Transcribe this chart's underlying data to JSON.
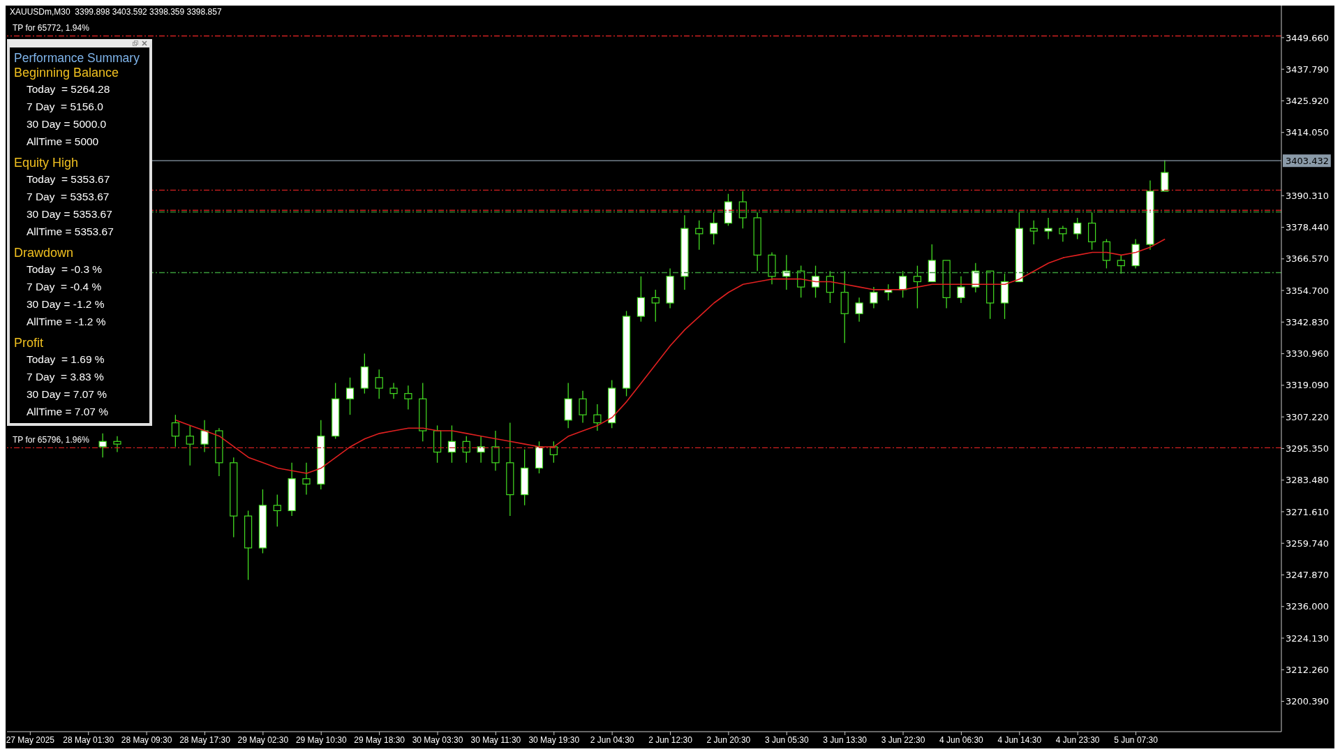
{
  "chart_data": [
    {
      "type": "candlestick",
      "title": "XAUUSDm,M30  3399.898 3403.592 3398.359 3398.857",
      "categories": [
        "27 May 2025",
        null,
        null,
        null,
        "28 May 01:30",
        null,
        null,
        null,
        "28 May 09:30",
        null,
        null,
        null,
        "28 May 17:30",
        null,
        null,
        null,
        "29 May 02:30",
        null,
        null,
        null,
        "29 May 10:30",
        null,
        null,
        null,
        "29 May 18:30",
        null,
        null,
        null,
        "30 May 03:30",
        null,
        null,
        null,
        "30 May 11:30",
        null,
        null,
        null,
        "30 May 19:30",
        null,
        null,
        null,
        "2 Jun 04:30",
        null,
        null,
        null,
        "2 Jun 12:30",
        null,
        null,
        null,
        "2 Jun 20:30",
        null,
        null,
        null,
        "3 Jun 05:30",
        null,
        null,
        null,
        "3 Jun 13:30",
        null,
        null,
        null,
        "3 Jun 22:30",
        null,
        null,
        null,
        "4 Jun 06:30",
        null,
        null,
        null,
        "4 Jun 14:30",
        null,
        null,
        null,
        "4 Jun 23:30",
        null,
        null,
        null,
        "5 Jun 07:30",
        null,
        null
      ],
      "color": "#44dd22",
      "ohlc": [
        null,
        null,
        null,
        null,
        null,
        [
          3296,
          3301,
          3292,
          3298
        ],
        [
          3298,
          3300,
          3294,
          3297
        ],
        null,
        null,
        null,
        [
          3305,
          3308,
          3296,
          3300
        ],
        [
          3300,
          3304,
          3289,
          3297
        ],
        [
          3297,
          3306,
          3294,
          3302
        ],
        [
          3302,
          3303,
          3285,
          3290
        ],
        [
          3290,
          3292,
          3262,
          3270
        ],
        [
          3270,
          3272,
          3246,
          3258
        ],
        [
          3258,
          3280,
          3256,
          3274
        ],
        [
          3274,
          3278,
          3266,
          3272
        ],
        [
          3272,
          3290,
          3270,
          3284
        ],
        [
          3284,
          3290,
          3278,
          3282
        ],
        [
          3282,
          3306,
          3280,
          3300
        ],
        [
          3300,
          3320,
          3299,
          3314
        ],
        [
          3314,
          3322,
          3308,
          3318
        ],
        [
          3318,
          3331,
          3316,
          3326
        ],
        [
          3322,
          3325,
          3314,
          3318
        ],
        [
          3318,
          3320,
          3314,
          3316
        ],
        [
          3316,
          3319,
          3310,
          3314
        ],
        [
          3314,
          3320,
          3298,
          3302
        ],
        [
          3302,
          3304,
          3290,
          3294
        ],
        [
          3294,
          3304,
          3290,
          3298
        ],
        [
          3298,
          3300,
          3290,
          3294
        ],
        [
          3294,
          3300,
          3290,
          3296
        ],
        [
          3296,
          3302,
          3287,
          3290
        ],
        [
          3290,
          3305,
          3270,
          3278
        ],
        [
          3278,
          3295,
          3274,
          3288
        ],
        [
          3288,
          3298,
          3286,
          3296
        ],
        [
          3296,
          3298,
          3290,
          3293
        ],
        [
          3306,
          3320,
          3303,
          3314
        ],
        [
          3314,
          3317,
          3305,
          3308
        ],
        [
          3308,
          3312,
          3302,
          3305
        ],
        [
          3305,
          3321,
          3303,
          3318
        ],
        [
          3318,
          3347,
          3315,
          3345
        ],
        [
          3345,
          3360,
          3343,
          3352
        ],
        [
          3352,
          3355,
          3343,
          3350
        ],
        [
          3350,
          3363,
          3348,
          3360
        ],
        [
          3360,
          3383,
          3355,
          3378
        ],
        [
          3378,
          3381,
          3370,
          3376
        ],
        [
          3376,
          3384,
          3372,
          3380
        ],
        [
          3380,
          3391,
          3379,
          3388
        ],
        [
          3388,
          3392,
          3378,
          3382
        ],
        [
          3382,
          3384,
          3362,
          3368
        ],
        [
          3368,
          3369,
          3357,
          3360
        ],
        [
          3360,
          3368,
          3355,
          3362
        ],
        [
          3362,
          3364,
          3352,
          3356
        ],
        [
          3356,
          3364,
          3352,
          3360
        ],
        [
          3360,
          3362,
          3350,
          3354
        ],
        [
          3354,
          3362,
          3335,
          3346
        ],
        [
          3346,
          3352,
          3343,
          3350
        ],
        [
          3350,
          3356,
          3348,
          3354
        ],
        [
          3354,
          3357,
          3351,
          3355
        ],
        [
          3355,
          3362,
          3352,
          3360
        ],
        [
          3360,
          3364,
          3348,
          3358
        ],
        [
          3358,
          3372,
          3358,
          3366
        ],
        [
          3366,
          3366,
          3348,
          3352
        ],
        [
          3352,
          3360,
          3350,
          3356
        ],
        [
          3356,
          3365,
          3354,
          3362
        ],
        [
          3362,
          3362,
          3344,
          3350
        ],
        [
          3350,
          3361,
          3344,
          3358
        ],
        [
          3358,
          3384,
          3358,
          3378
        ],
        [
          3378,
          3381,
          3372,
          3377
        ],
        [
          3377,
          3382,
          3374,
          3378
        ],
        [
          3378,
          3379,
          3373,
          3376
        ],
        [
          3376,
          3382,
          3374,
          3380
        ],
        [
          3380,
          3384,
          3370,
          3373
        ],
        [
          3373,
          3374,
          3363,
          3366
        ],
        [
          3366,
          3368,
          3361,
          3364
        ],
        [
          3364,
          3374,
          3363,
          3372
        ],
        [
          3372,
          3396,
          3370,
          3392
        ],
        [
          3392,
          3403.6,
          3392,
          3399
        ]
      ],
      "series": [
        {
          "type": "line",
          "color": "#e02020",
          "values": [
            null,
            null,
            null,
            null,
            null,
            null,
            null,
            null,
            null,
            null,
            3306,
            3304,
            3302,
            3300,
            3296,
            3292,
            3290,
            3288,
            3287,
            3286,
            3288,
            3292,
            3296,
            3299,
            3301,
            3302,
            3303,
            3303,
            3302,
            3302,
            3301,
            3300,
            3299,
            3298,
            3297,
            3296,
            3296,
            3300,
            3302,
            3304,
            3307,
            3313,
            3320,
            3327,
            3334,
            3340,
            3345,
            3350,
            3354,
            3357,
            3358,
            3359,
            3359,
            3359,
            3358,
            3358,
            3357,
            3356,
            3355,
            3355,
            3355,
            3356,
            3357,
            3357,
            3357,
            3357,
            3357,
            3357,
            3359,
            3362,
            3365,
            3367,
            3368,
            3369,
            3369,
            3368,
            3369,
            3371,
            3374
          ]
        }
      ],
      "ylim": [
        3189,
        3461.7
      ],
      "yticks": [
        {
          "value": 3200.39,
          "label": "3200.390"
        },
        {
          "value": 3212.26,
          "label": "3212.260"
        },
        {
          "value": 3224.13,
          "label": "3224.130"
        },
        {
          "value": 3236,
          "label": "3236.000"
        },
        {
          "value": 3247.87,
          "label": "3247.870"
        },
        {
          "value": 3259.74,
          "label": "3259.740"
        },
        {
          "value": 3271.61,
          "label": "3271.610"
        },
        {
          "value": 3283.48,
          "label": "3283.480"
        },
        {
          "value": 3295.35,
          "label": "3295.350"
        },
        {
          "value": 3307.22,
          "label": "3307.220"
        },
        {
          "value": 3319.09,
          "label": "3319.090"
        },
        {
          "value": 3330.96,
          "label": "3330.960"
        },
        {
          "value": 3342.83,
          "label": "3342.830"
        },
        {
          "value": 3354.7,
          "label": "3354.700"
        },
        {
          "value": 3366.57,
          "label": "3366.570"
        },
        {
          "value": 3378.44,
          "label": "3378.440"
        },
        {
          "value": 3390.31,
          "label": "3390.310"
        },
        {
          "value": 3414.05,
          "label": "3414.050"
        },
        {
          "value": 3425.92,
          "label": "3425.920"
        },
        {
          "value": 3437.79,
          "label": "3437.790"
        },
        {
          "value": 3449.66,
          "label": "3449.660"
        }
      ],
      "ref_lines": [
        {
          "axis": "y",
          "value": 3450.3,
          "label": "TP for 65772, 1.94%",
          "color": "#d02020",
          "line_style": "dashed"
        },
        {
          "axis": "y",
          "value": 3403.432,
          "label": "3403.432",
          "color": "#8a9aa8",
          "line_style": "solid"
        },
        {
          "axis": "y",
          "value": 3392.4,
          "color": "#d02020",
          "line_style": "dashed"
        },
        {
          "axis": "y",
          "value": 3384.8,
          "color": "#d02020",
          "line_style": "dashed"
        },
        {
          "axis": "y",
          "value": 3384.2,
          "color": "#3a9a3a",
          "line_style": "dashed"
        },
        {
          "axis": "y",
          "value": 3361.4,
          "color": "#3a9a3a",
          "line_style": "dashed"
        },
        {
          "axis": "y",
          "value": 3295.6,
          "label": "TP for 65796, 1.96%",
          "color": "#d02020",
          "line_style": "dashed"
        }
      ],
      "tick_labels": true
    },
    {
      "type": "other",
      "title": "Performance Summary",
      "annotations": [
        "Beginning Balance",
        "Today  = 5264.28",
        "7 Day  = 5156.0",
        "30 Day = 5000.0",
        "AllTime = 5000",
        "Equity High",
        "Today  = 5353.67",
        "7 Day  = 5353.67",
        "30 Day = 5353.67",
        "AllTime = 5353.67",
        "Drawdown",
        "Today  = -0.3 %",
        "7 Day  = -0.4 %",
        "30 Day = -1.2 %",
        "AllTime = -1.2 %",
        "Profit",
        "Today  = 1.69 %",
        "7 Day  = 3.83 %",
        "30 Day = 7.07 %",
        "AllTime = 7.07 %"
      ]
    }
  ]
}
